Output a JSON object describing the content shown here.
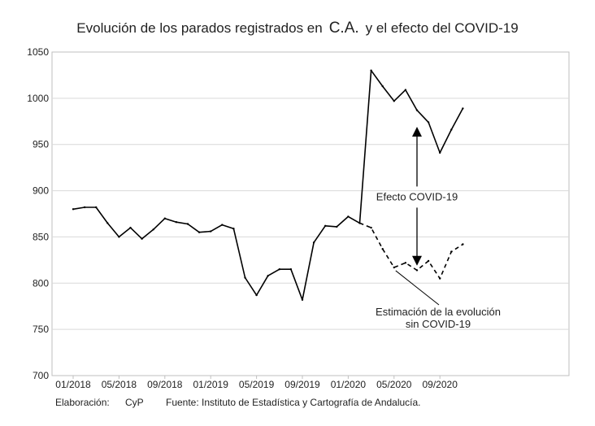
{
  "title": {
    "prefix": "Evolución de los parados registrados en",
    "region": "C.A.",
    "suffix": "y el efecto del COVID-19"
  },
  "footer": {
    "elaboracion_label": "Elaboración:",
    "elaboracion_value": "CyP",
    "fuente": "Fuente: Instituto de Estadística y Cartografía de Andalucía."
  },
  "colors": {
    "line": "#000000",
    "grid": "#d9d9d9",
    "axis": "#bfbfbf"
  },
  "chart_data": {
    "type": "line",
    "title": "Evolución de los parados registrados en C.A. y el efecto del COVID-19",
    "xlabel": "",
    "ylabel": "",
    "ylim": [
      700,
      1050
    ],
    "yticks": [
      700,
      750,
      800,
      850,
      900,
      950,
      1000,
      1050
    ],
    "grid": true,
    "x_tick_labels": [
      "01/2018",
      "05/2018",
      "09/2018",
      "01/2019",
      "05/2019",
      "09/2019",
      "01/2020",
      "05/2020",
      "09/2020"
    ],
    "x_tick_index": [
      0,
      4,
      8,
      12,
      16,
      20,
      24,
      28,
      32
    ],
    "series": [
      {
        "style": "solid",
        "x": [
          "01/2018",
          "02/2018",
          "03/2018",
          "04/2018",
          "05/2018",
          "06/2018",
          "07/2018",
          "08/2018",
          "09/2018",
          "10/2018",
          "11/2018",
          "12/2018",
          "01/2019",
          "02/2019",
          "03/2019",
          "04/2019",
          "05/2019",
          "06/2019",
          "07/2019",
          "08/2019",
          "09/2019",
          "10/2019",
          "11/2019",
          "12/2019",
          "01/2020",
          "02/2020",
          "03/2020",
          "04/2020",
          "05/2020",
          "06/2020",
          "07/2020",
          "08/2020",
          "09/2020",
          "10/2020",
          "11/2020"
        ],
        "values": [
          880,
          882,
          882,
          865,
          850,
          860,
          848,
          858,
          870,
          866,
          864,
          855,
          856,
          863,
          859,
          806,
          787,
          808,
          815,
          815,
          782,
          844,
          862,
          861,
          872,
          865,
          1030,
          1013,
          997,
          1009,
          987,
          974,
          941,
          966,
          989
        ]
      },
      {
        "style": "dashed",
        "x": [
          "02/2020",
          "03/2020",
          "04/2020",
          "05/2020",
          "06/2020",
          "07/2020",
          "08/2020",
          "09/2020",
          "10/2020",
          "11/2020"
        ],
        "values": [
          865,
          860,
          837,
          817,
          822,
          814,
          824,
          805,
          834,
          842
        ]
      }
    ],
    "annotations": [
      {
        "text": "Efecto COVID-19",
        "type": "double-arrow",
        "x": "07/2020",
        "y_from": 968,
        "y_to": 820
      },
      {
        "lines": [
          "Estimación de la evolución",
          "sin COVID-19"
        ],
        "type": "pointer",
        "x": "05/2020",
        "y": 817
      }
    ]
  }
}
